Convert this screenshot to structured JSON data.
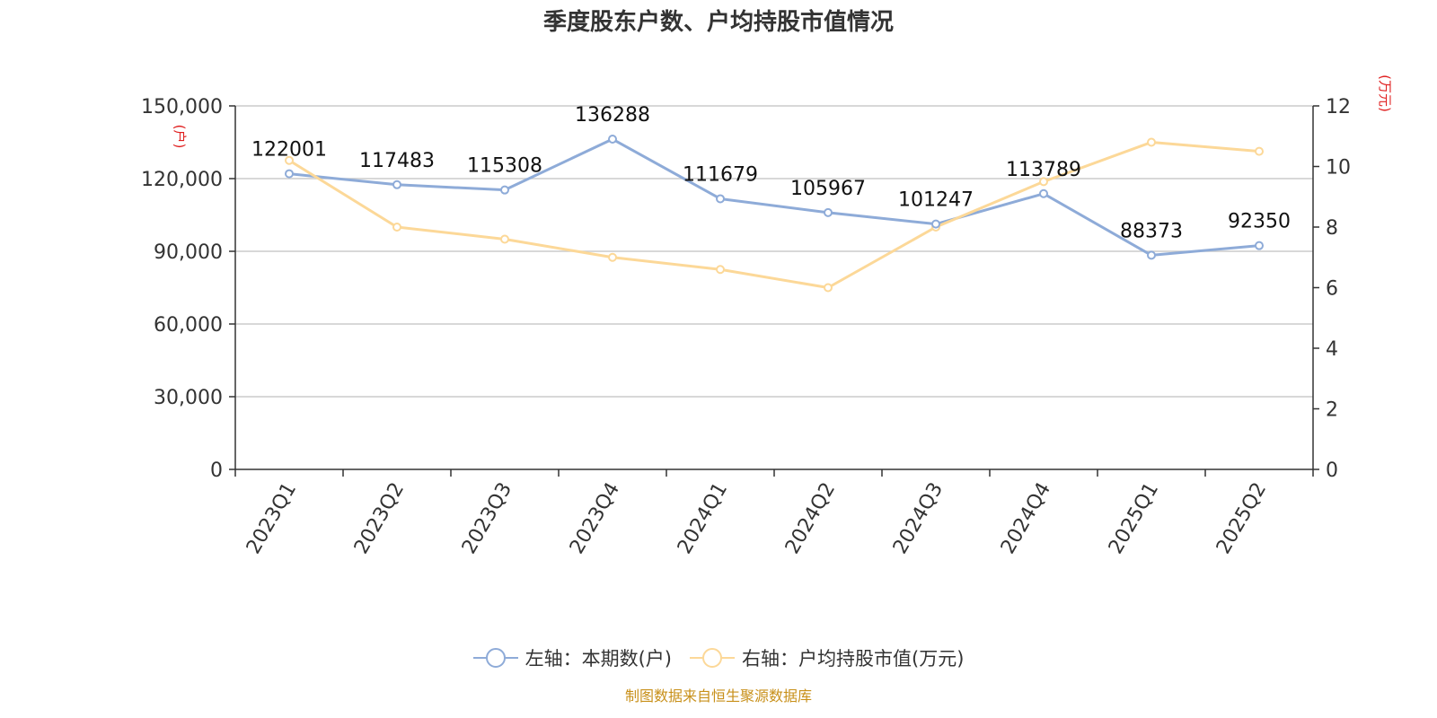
{
  "chart_data": {
    "type": "line",
    "title": "季度股东户数、户均持股市值情况",
    "categories": [
      "2023Q1",
      "2023Q2",
      "2023Q3",
      "2023Q4",
      "2024Q1",
      "2024Q2",
      "2024Q3",
      "2024Q4",
      "2025Q1",
      "2025Q2"
    ],
    "series": [
      {
        "name": "左轴：本期数(户)",
        "axis": "left",
        "color": "#8eabd8",
        "values": [
          122001,
          117483,
          115308,
          136288,
          111679,
          105967,
          101247,
          113789,
          88373,
          92350
        ],
        "show_labels": true
      },
      {
        "name": "右轴：户均持股市值(万元)",
        "axis": "right",
        "color": "#fcd898",
        "values": [
          10.2,
          8.0,
          7.6,
          7.0,
          6.6,
          6.0,
          8.0,
          9.5,
          10.8,
          10.5
        ],
        "show_labels": false
      }
    ],
    "left_axis": {
      "unit": "(户)",
      "ylim": [
        0,
        150000
      ],
      "ticks": [
        "0",
        "30,000",
        "60,000",
        "90,000",
        "120,000",
        "150,000"
      ]
    },
    "right_axis": {
      "unit": "(万元)",
      "ylim": [
        0,
        12
      ],
      "ticks": [
        "0",
        "2",
        "4",
        "6",
        "8",
        "10",
        "12"
      ]
    },
    "grid": true,
    "legend_position": "bottom"
  },
  "source": "制图数据来自恒生聚源数据库"
}
